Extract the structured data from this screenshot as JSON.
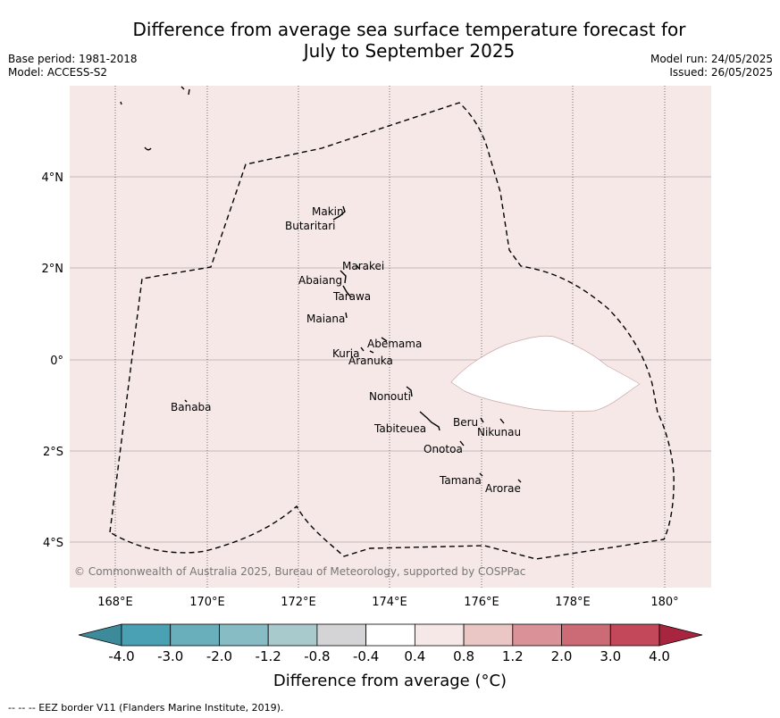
{
  "title_line1": "Difference from average sea surface temperature forecast for",
  "title_line2": "July to September 2025",
  "base_period": "Base period: 1981-2018",
  "model": "Model: ACCESS-S2",
  "model_run": "Model run: 24/05/2025",
  "issued": "Issued: 26/05/2025",
  "credit": "© Commonwealth of Australia 2025, Bureau of Meteorology, supported by COSPPac",
  "colorbar_title": "Difference from average (°C)",
  "eez_legend": "--  --  -- EEZ border V11 (Flanders Marine Institute, 2019).",
  "lat_labels": [
    "4°N",
    "2°N",
    "0°",
    "2°S",
    "4°S"
  ],
  "lon_labels": [
    "168°E",
    "170°E",
    "172°E",
    "174°E",
    "176°E",
    "178°E",
    "180°"
  ],
  "colorbar_ticks": [
    "-4.0",
    "-3.0",
    "-2.0",
    "-1.2",
    "-0.8",
    "-0.4",
    "0.4",
    "0.8",
    "1.2",
    "2.0",
    "3.0",
    "4.0"
  ],
  "colorbar_colors": [
    "#4aa1b3",
    "#69aebb",
    "#88bcc5",
    "#a9cacd",
    "#d4d4d6",
    "#ffffff",
    "#f5e8e7",
    "#eac7c4",
    "#da9298",
    "#cc6a75",
    "#c2485a"
  ],
  "colorbar_low_extend": "#3d8a9a",
  "colorbar_high_extend": "#a82540",
  "map_fill": "#f5e8e7",
  "islands": [
    "Makin",
    "Butaritari",
    "Marakei",
    "Abaiang",
    "Tarawa",
    "Maiana",
    "Abemama",
    "Kuria",
    "Aranuka",
    "Nonouti",
    "Banaba",
    "Tabiteuea",
    "Beru",
    "Nikunau",
    "Onotoa",
    "Tamana",
    "Arorae"
  ]
}
